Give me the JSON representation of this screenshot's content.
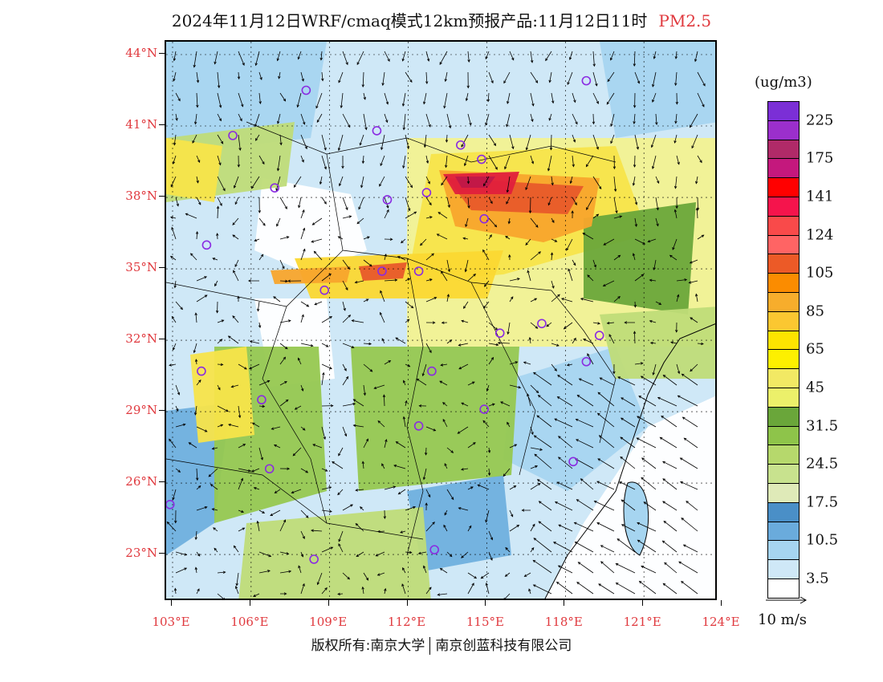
{
  "title": {
    "main": "2024年11月12日WRF/cmaq模式12km预报产品:11月12日11时",
    "species": "PM2.5"
  },
  "map": {
    "lat_labels": [
      "44°N",
      "41°N",
      "38°N",
      "35°N",
      "32°N",
      "29°N",
      "26°N",
      "23°N"
    ],
    "lon_labels": [
      "103°E",
      "106°E",
      "109°E",
      "112°E",
      "115°E",
      "118°E",
      "121°E",
      "124°E"
    ],
    "lat_values": [
      44,
      41,
      38,
      35,
      32,
      29,
      26,
      23
    ],
    "lon_values": [
      103,
      106,
      109,
      112,
      115,
      118,
      121,
      124
    ],
    "colors": {
      "white": "#ffffff",
      "light_blue": "#cfe8f7",
      "mid_blue": "#a6d5f0",
      "blue": "#6fb0de",
      "deep_blue": "#4a8fc7",
      "pale_green": "#dfe9be",
      "light_green": "#bfdc78",
      "green": "#96c850",
      "dark_green": "#6aa63a",
      "yellow_pale": "#f2f291",
      "yellow": "#f7e44a",
      "gold": "#fbd832",
      "orange": "#f8a52c",
      "red_orange": "#e85a2a",
      "red": "#e01f3c",
      "crimson": "#c01848"
    },
    "station_marker_color": "#8a2be2"
  },
  "colorbar": {
    "unit": "(ug/m3)",
    "labels": [
      "225",
      "175",
      "141",
      "124",
      "105",
      "85",
      "65",
      "45",
      "31.5",
      "24.5",
      "17.5",
      "10.5",
      "3.5"
    ],
    "colors": [
      "#7b2fd6",
      "#9b2fcc",
      "#b02a68",
      "#c4187d",
      "#ff0000",
      "#f5144c",
      "#f94a4a",
      "#ff6464",
      "#ec5a27",
      "#fb8c00",
      "#f7ad2c",
      "#fbc731",
      "#fde400",
      "#fdf000",
      "#f2e964",
      "#ecf06a",
      "#6aa63a",
      "#8ec44a",
      "#b6d86c",
      "#c8e28e",
      "#dfeab8",
      "#4a8fc7",
      "#6aabdc",
      "#a6d5f0",
      "#cfe8f7",
      "#ffffff"
    ]
  },
  "wind_reference": {
    "label": "10 m/s"
  },
  "copyright": {
    "left": "版权所有:南京大学",
    "right": "南京创蓝科技有限公司"
  }
}
